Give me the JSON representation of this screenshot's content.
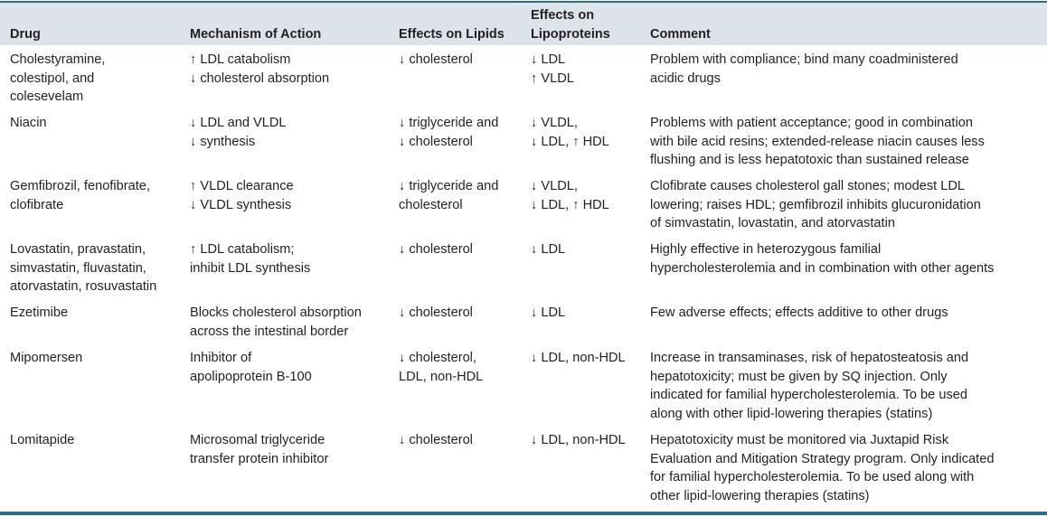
{
  "headers": {
    "drug": "Drug",
    "mechanism": "Mechanism of Action",
    "lipids": "Effects on Lipids",
    "lipoproteins_1": "Effects on",
    "lipoproteins_2": "Lipoproteins",
    "comment": "Comment"
  },
  "rows": [
    {
      "drug": [
        "Cholestyramine,",
        "colestipol, and",
        "colesevelam"
      ],
      "mechanism": [
        "↑ LDL catabolism",
        "↓ cholesterol absorption"
      ],
      "lipids": [
        "↓ cholesterol"
      ],
      "lipoproteins": [
        "↓ LDL",
        "↑ VLDL"
      ],
      "comment": [
        "Problem with compliance; bind many coadministered",
        "acidic drugs"
      ]
    },
    {
      "drug": [
        "Niacin"
      ],
      "mechanism": [
        "↓ LDL and VLDL",
        "↓ synthesis"
      ],
      "lipids": [
        "↓ triglyceride and",
        "↓ cholesterol"
      ],
      "lipoproteins": [
        "↓ VLDL,",
        "↓ LDL, ↑ HDL"
      ],
      "comment": [
        "Problems with patient acceptance; good in combination",
        "with bile acid resins; extended-release niacin causes less",
        "flushing and is less hepatotoxic than sustained release"
      ]
    },
    {
      "drug": [
        "Gemfibrozil, fenofibrate,",
        "clofibrate"
      ],
      "mechanism": [
        "↑ VLDL clearance",
        "↓ VLDL synthesis"
      ],
      "lipids": [
        "↓ triglyceride and",
        "cholesterol"
      ],
      "lipoproteins": [
        "↓ VLDL,",
        "↓ LDL, ↑ HDL"
      ],
      "comment": [
        "Clofibrate causes cholesterol gall stones; modest LDL",
        "lowering; raises HDL; gemfibrozil inhibits glucuronidation",
        "of simvastatin, lovastatin, and atorvastatin"
      ]
    },
    {
      "drug": [
        "Lovastatin, pravastatin,",
        "simvastatin, fluvastatin,",
        "atorvastatin, rosuvastatin"
      ],
      "mechanism": [
        "↑ LDL catabolism;",
        "inhibit LDL synthesis"
      ],
      "lipids": [
        "↓ cholesterol"
      ],
      "lipoproteins": [
        "↓ LDL"
      ],
      "comment": [
        "Highly effective in heterozygous familial",
        "hypercholesterolemia and in combination with other agents"
      ]
    },
    {
      "drug": [
        "Ezetimibe"
      ],
      "mechanism": [
        "Blocks cholesterol absorption",
        "across the intestinal border"
      ],
      "lipids": [
        "↓ cholesterol"
      ],
      "lipoproteins": [
        "↓ LDL"
      ],
      "comment": [
        "Few adverse effects; effects additive to other drugs"
      ]
    },
    {
      "drug": [
        "Mipomersen"
      ],
      "mechanism": [
        "Inhibitor of",
        "apolipoprotein B-100"
      ],
      "lipids": [
        "↓ cholesterol,",
        "LDL, non-HDL"
      ],
      "lipoproteins": [
        "↓ LDL, non-HDL"
      ],
      "comment": [
        "Increase in transaminases, risk of hepatosteatosis and",
        "hepatotoxicity; must be given by SQ injection. Only",
        "indicated for familial hypercholesterolemia. To be used",
        "along with other lipid-lowering therapies (statins)"
      ]
    },
    {
      "drug": [
        "Lomitapide"
      ],
      "mechanism": [
        "Microsomal triglyceride",
        "transfer protein inhibitor"
      ],
      "lipids": [
        "↓ cholesterol"
      ],
      "lipoproteins": [
        "↓ LDL, non-HDL"
      ],
      "comment": [
        "Hepatotoxicity must be monitored via Juxtapid Risk",
        "Evaluation and Mitigation Strategy program. Only indicated",
        "for familial hypercholesterolemia. To be used along with",
        "other lipid-lowering therapies (statins)"
      ]
    }
  ]
}
